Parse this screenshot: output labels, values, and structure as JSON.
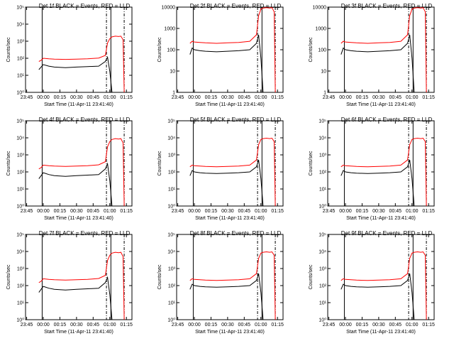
{
  "chart_data": {
    "type": "line",
    "colors": {
      "events": "#000000",
      "lld": "#ff0000"
    },
    "x_ticks": [
      "23:45",
      "00:00",
      "00:15",
      "00:30",
      "00:45",
      "01:00",
      "01:15"
    ],
    "x_range_minutes": [
      -16,
      80
    ],
    "xlabel": "Start Time (11-Apr-11 23:41:40)",
    "ylabel": "Counts/sec",
    "log_scale_y": true,
    "panels": [
      {
        "title": "Det 1f BLACK = Events, RED = LLD",
        "ylim": [
          1,
          1000000
        ],
        "yticks": [
          "10⁰",
          "10¹",
          "10²",
          "10³",
          "10⁴",
          "10⁵"
        ],
        "vlines": [
          -1,
          57,
          61,
          73
        ],
        "events": [
          [
            -4,
            40
          ],
          [
            -2,
            60
          ],
          [
            0,
            90
          ],
          [
            5,
            70
          ],
          [
            10,
            60
          ],
          [
            20,
            55
          ],
          [
            30,
            60
          ],
          [
            40,
            65
          ],
          [
            50,
            70
          ],
          [
            56,
            150
          ],
          [
            58,
            300
          ],
          [
            60,
            30
          ],
          [
            62,
            1
          ]
        ],
        "lld": [
          [
            -4,
            150
          ],
          [
            -2,
            180
          ],
          [
            0,
            250
          ],
          [
            5,
            230
          ],
          [
            10,
            220
          ],
          [
            20,
            210
          ],
          [
            30,
            220
          ],
          [
            40,
            230
          ],
          [
            50,
            260
          ],
          [
            56,
            400
          ],
          [
            58,
            3000
          ],
          [
            60,
            6000
          ],
          [
            62,
            8000
          ],
          [
            65,
            9000
          ],
          [
            68,
            8500
          ],
          [
            70,
            9000
          ],
          [
            72,
            5000
          ],
          [
            73,
            1
          ]
        ]
      },
      {
        "title": "Det 2f BLACK = Events, RED = LLD",
        "ylim": [
          1,
          10000
        ],
        "yticks": [
          "1",
          "10",
          "100",
          "1000",
          "10000"
        ],
        "vlines": [
          -1,
          57,
          61,
          73
        ],
        "events": [
          [
            -4,
            60
          ],
          [
            -2,
            120
          ],
          [
            0,
            100
          ],
          [
            5,
            90
          ],
          [
            10,
            85
          ],
          [
            20,
            80
          ],
          [
            30,
            85
          ],
          [
            40,
            90
          ],
          [
            50,
            100
          ],
          [
            56,
            200
          ],
          [
            58,
            500
          ],
          [
            60,
            40
          ],
          [
            62,
            1
          ]
        ],
        "lld": [
          [
            -4,
            200
          ],
          [
            -2,
            250
          ],
          [
            0,
            230
          ],
          [
            5,
            220
          ],
          [
            10,
            210
          ],
          [
            20,
            200
          ],
          [
            30,
            210
          ],
          [
            40,
            220
          ],
          [
            50,
            250
          ],
          [
            56,
            500
          ],
          [
            58,
            4000
          ],
          [
            60,
            8000
          ],
          [
            62,
            9000
          ],
          [
            65,
            9500
          ],
          [
            68,
            9000
          ],
          [
            70,
            9500
          ],
          [
            72,
            6000
          ],
          [
            73,
            1
          ]
        ]
      },
      {
        "title": "Det 3f BLACK = Events, RED = LLD",
        "ylim": [
          1,
          10000
        ],
        "yticks": [
          "1",
          "10",
          "100",
          "1000",
          "10000"
        ],
        "vlines": [
          -1,
          57,
          61,
          73
        ],
        "events": [
          [
            -4,
            60
          ],
          [
            -2,
            120
          ],
          [
            0,
            100
          ],
          [
            5,
            90
          ],
          [
            10,
            85
          ],
          [
            20,
            80
          ],
          [
            30,
            85
          ],
          [
            40,
            90
          ],
          [
            50,
            100
          ],
          [
            56,
            200
          ],
          [
            58,
            500
          ],
          [
            60,
            40
          ],
          [
            62,
            1
          ]
        ],
        "lld": [
          [
            -4,
            200
          ],
          [
            -2,
            250
          ],
          [
            0,
            230
          ],
          [
            5,
            220
          ],
          [
            10,
            210
          ],
          [
            20,
            200
          ],
          [
            30,
            210
          ],
          [
            40,
            220
          ],
          [
            50,
            250
          ],
          [
            56,
            500
          ],
          [
            58,
            4000
          ],
          [
            60,
            8000
          ],
          [
            62,
            9000
          ],
          [
            65,
            9500
          ],
          [
            68,
            9000
          ],
          [
            70,
            9500
          ],
          [
            72,
            6000
          ],
          [
            73,
            1
          ]
        ]
      },
      {
        "title": "Det 4f BLACK = Events, RED = LLD",
        "ylim": [
          1,
          100000
        ],
        "yticks": [
          "10⁰",
          "10¹",
          "10²",
          "10³",
          "10⁴",
          "10⁵"
        ],
        "vlines": [
          -1,
          57,
          61,
          73
        ],
        "events": [
          [
            -4,
            40
          ],
          [
            -2,
            60
          ],
          [
            0,
            90
          ],
          [
            5,
            70
          ],
          [
            10,
            60
          ],
          [
            20,
            55
          ],
          [
            30,
            60
          ],
          [
            40,
            65
          ],
          [
            50,
            70
          ],
          [
            56,
            150
          ],
          [
            58,
            300
          ],
          [
            60,
            30
          ],
          [
            62,
            1
          ]
        ],
        "lld": [
          [
            -4,
            150
          ],
          [
            -2,
            180
          ],
          [
            0,
            250
          ],
          [
            5,
            230
          ],
          [
            10,
            220
          ],
          [
            20,
            210
          ],
          [
            30,
            220
          ],
          [
            40,
            230
          ],
          [
            50,
            260
          ],
          [
            56,
            400
          ],
          [
            58,
            3000
          ],
          [
            60,
            6000
          ],
          [
            62,
            8000
          ],
          [
            65,
            9000
          ],
          [
            68,
            8500
          ],
          [
            70,
            9000
          ],
          [
            72,
            5000
          ],
          [
            73,
            1
          ]
        ]
      },
      {
        "title": "Det 5f BLACK = Events, RED = LLD",
        "ylim": [
          1,
          100000
        ],
        "yticks": [
          "10⁰",
          "10¹",
          "10²",
          "10³",
          "10⁴",
          "10⁵"
        ],
        "vlines": [
          -1,
          57,
          61,
          73
        ],
        "events": [
          [
            -4,
            60
          ],
          [
            -2,
            120
          ],
          [
            0,
            100
          ],
          [
            5,
            90
          ],
          [
            10,
            85
          ],
          [
            20,
            80
          ],
          [
            30,
            85
          ],
          [
            40,
            90
          ],
          [
            50,
            100
          ],
          [
            56,
            200
          ],
          [
            58,
            500
          ],
          [
            60,
            40
          ],
          [
            62,
            1
          ]
        ],
        "lld": [
          [
            -4,
            200
          ],
          [
            -2,
            250
          ],
          [
            0,
            230
          ],
          [
            5,
            220
          ],
          [
            10,
            210
          ],
          [
            20,
            200
          ],
          [
            30,
            210
          ],
          [
            40,
            220
          ],
          [
            50,
            250
          ],
          [
            56,
            500
          ],
          [
            58,
            4000
          ],
          [
            60,
            8000
          ],
          [
            62,
            9000
          ],
          [
            65,
            9500
          ],
          [
            68,
            9000
          ],
          [
            70,
            9500
          ],
          [
            72,
            6000
          ],
          [
            73,
            1
          ]
        ]
      },
      {
        "title": "Det 6f BLACK = Events, RED = LLD",
        "ylim": [
          1,
          100000
        ],
        "yticks": [
          "10⁰",
          "10¹",
          "10²",
          "10³",
          "10⁴",
          "10⁵"
        ],
        "vlines": [
          -1,
          57,
          61,
          73
        ],
        "events": [
          [
            -4,
            60
          ],
          [
            -2,
            120
          ],
          [
            0,
            100
          ],
          [
            5,
            90
          ],
          [
            10,
            85
          ],
          [
            20,
            80
          ],
          [
            30,
            85
          ],
          [
            40,
            90
          ],
          [
            50,
            100
          ],
          [
            56,
            200
          ],
          [
            58,
            500
          ],
          [
            60,
            40
          ],
          [
            62,
            1
          ]
        ],
        "lld": [
          [
            -4,
            200
          ],
          [
            -2,
            250
          ],
          [
            0,
            230
          ],
          [
            5,
            220
          ],
          [
            10,
            210
          ],
          [
            20,
            200
          ],
          [
            30,
            210
          ],
          [
            40,
            220
          ],
          [
            50,
            250
          ],
          [
            56,
            500
          ],
          [
            58,
            4000
          ],
          [
            60,
            8000
          ],
          [
            62,
            9000
          ],
          [
            65,
            9500
          ],
          [
            68,
            9000
          ],
          [
            70,
            9500
          ],
          [
            72,
            6000
          ],
          [
            73,
            1
          ]
        ]
      },
      {
        "title": "Det 7f BLACK = Events, RED = LLD",
        "ylim": [
          1,
          100000
        ],
        "yticks": [
          "10⁰",
          "10¹",
          "10²",
          "10³",
          "10⁴",
          "10⁵"
        ],
        "vlines": [
          -1,
          57,
          61,
          73
        ],
        "events": [
          [
            -4,
            40
          ],
          [
            -2,
            60
          ],
          [
            0,
            90
          ],
          [
            5,
            70
          ],
          [
            10,
            60
          ],
          [
            20,
            55
          ],
          [
            30,
            60
          ],
          [
            40,
            65
          ],
          [
            50,
            70
          ],
          [
            56,
            150
          ],
          [
            58,
            300
          ],
          [
            60,
            30
          ],
          [
            62,
            1
          ]
        ],
        "lld": [
          [
            -4,
            150
          ],
          [
            -2,
            180
          ],
          [
            0,
            250
          ],
          [
            5,
            230
          ],
          [
            10,
            220
          ],
          [
            20,
            210
          ],
          [
            30,
            220
          ],
          [
            40,
            230
          ],
          [
            50,
            260
          ],
          [
            56,
            400
          ],
          [
            58,
            3000
          ],
          [
            60,
            6000
          ],
          [
            62,
            8000
          ],
          [
            65,
            9000
          ],
          [
            68,
            8500
          ],
          [
            70,
            9000
          ],
          [
            72,
            5000
          ],
          [
            73,
            1
          ]
        ]
      },
      {
        "title": "Det 8f BLACK = Events, RED = LLD",
        "ylim": [
          1,
          100000
        ],
        "yticks": [
          "10⁰",
          "10¹",
          "10²",
          "10³",
          "10⁴",
          "10⁵"
        ],
        "vlines": [
          -1,
          57,
          61,
          73
        ],
        "events": [
          [
            -4,
            60
          ],
          [
            -2,
            120
          ],
          [
            0,
            100
          ],
          [
            5,
            90
          ],
          [
            10,
            85
          ],
          [
            20,
            80
          ],
          [
            30,
            85
          ],
          [
            40,
            90
          ],
          [
            50,
            100
          ],
          [
            56,
            200
          ],
          [
            58,
            500
          ],
          [
            60,
            40
          ],
          [
            62,
            1
          ]
        ],
        "lld": [
          [
            -4,
            200
          ],
          [
            -2,
            250
          ],
          [
            0,
            230
          ],
          [
            5,
            220
          ],
          [
            10,
            210
          ],
          [
            20,
            200
          ],
          [
            30,
            210
          ],
          [
            40,
            220
          ],
          [
            50,
            250
          ],
          [
            56,
            500
          ],
          [
            58,
            4000
          ],
          [
            60,
            8000
          ],
          [
            62,
            9000
          ],
          [
            65,
            9500
          ],
          [
            68,
            9000
          ],
          [
            70,
            9500
          ],
          [
            72,
            6000
          ],
          [
            73,
            1
          ]
        ]
      },
      {
        "title": "Det 9f BLACK = Events, RED = LLD",
        "ylim": [
          1,
          100000
        ],
        "yticks": [
          "10⁰",
          "10¹",
          "10²",
          "10³",
          "10⁴",
          "10⁵"
        ],
        "vlines": [
          -1,
          57,
          61,
          73
        ],
        "events": [
          [
            -4,
            60
          ],
          [
            -2,
            120
          ],
          [
            0,
            100
          ],
          [
            5,
            90
          ],
          [
            10,
            85
          ],
          [
            20,
            80
          ],
          [
            30,
            85
          ],
          [
            40,
            90
          ],
          [
            50,
            100
          ],
          [
            56,
            200
          ],
          [
            58,
            500
          ],
          [
            60,
            40
          ],
          [
            62,
            1
          ]
        ],
        "lld": [
          [
            -4,
            200
          ],
          [
            -2,
            250
          ],
          [
            0,
            230
          ],
          [
            5,
            220
          ],
          [
            10,
            210
          ],
          [
            20,
            200
          ],
          [
            30,
            210
          ],
          [
            40,
            220
          ],
          [
            50,
            250
          ],
          [
            56,
            500
          ],
          [
            58,
            4000
          ],
          [
            60,
            8000
          ],
          [
            62,
            9000
          ],
          [
            65,
            9500
          ],
          [
            68,
            9000
          ],
          [
            70,
            9500
          ],
          [
            72,
            6000
          ],
          [
            73,
            1
          ]
        ]
      }
    ]
  }
}
